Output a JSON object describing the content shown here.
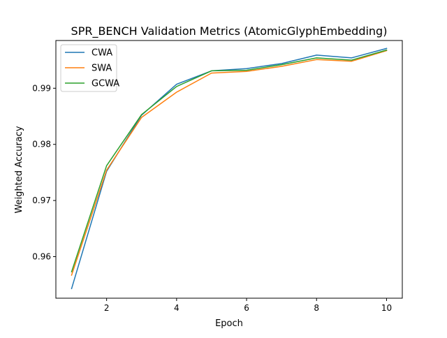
{
  "chart_data": {
    "type": "line",
    "title": "SPR_BENCH Validation Metrics (AtomicGlyphEmbedding)",
    "xlabel": "Epoch",
    "ylabel": "Weighted Accuracy",
    "x": [
      1,
      2,
      3,
      4,
      5,
      6,
      7,
      8,
      9,
      10
    ],
    "xlim": [
      0.55,
      10.45
    ],
    "ylim": [
      0.9526,
      0.9985
    ],
    "xticks": [
      2,
      4,
      6,
      8,
      10
    ],
    "xtick_labels": [
      "2",
      "4",
      "6",
      "8",
      "10"
    ],
    "yticks": [
      0.96,
      0.97,
      0.98,
      0.99
    ],
    "ytick_labels": [
      "0.96",
      "0.97",
      "0.98",
      "0.99"
    ],
    "grid": false,
    "legend_position": "upper-left",
    "series": [
      {
        "name": "CWA",
        "color": "#1f77b4",
        "values": [
          0.9543,
          0.9752,
          0.9852,
          0.9907,
          0.9931,
          0.9935,
          0.9944,
          0.9959,
          0.9954,
          0.9971
        ]
      },
      {
        "name": "SWA",
        "color": "#ff7f0e",
        "values": [
          0.9567,
          0.9754,
          0.9848,
          0.9893,
          0.9927,
          0.993,
          0.9939,
          0.9951,
          0.9948,
          0.9967
        ]
      },
      {
        "name": "GCWA",
        "color": "#2ca02c",
        "values": [
          0.9573,
          0.9762,
          0.9853,
          0.9903,
          0.9931,
          0.9932,
          0.9942,
          0.9954,
          0.995,
          0.9968
        ]
      }
    ]
  }
}
